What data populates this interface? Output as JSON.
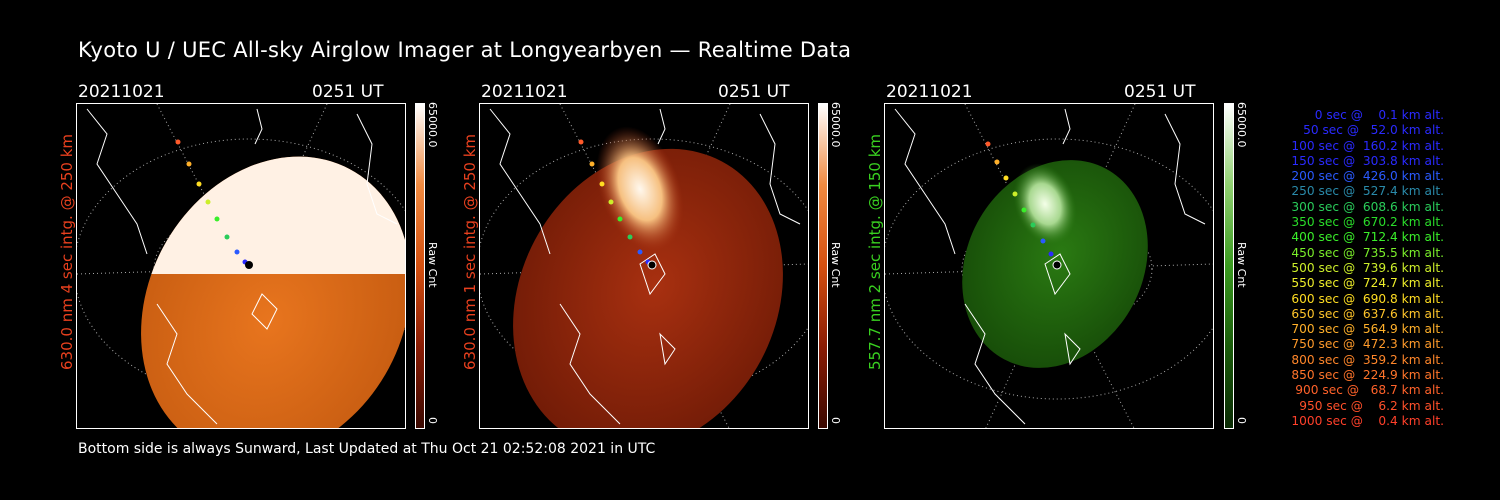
{
  "title": "Kyoto U / UEC All-sky Airglow Imager at Longyearbyen — Realtime Data",
  "footer": "Bottom side is always Sunward, Last Updated at Thu Oct 21 02:52:08 2021 in UTC",
  "colors": {
    "background": "#000000",
    "red_label": "#e8401e",
    "green_label": "#39d020"
  },
  "panels": [
    {
      "date": "20211021",
      "time": "0251 UT",
      "ylabel": "630.0 nm 4 sec intg. @ 250 km",
      "ylabel_color": "#e8401e",
      "colorbar_max": "65000.0",
      "colorbar_label": "Raw Cnt",
      "colorbar_min": "0",
      "colormap": "red"
    },
    {
      "date": "20211021",
      "time": "0251 UT",
      "ylabel": "630.0 nm 1 sec intg. @ 250 km",
      "ylabel_color": "#e8401e",
      "colorbar_max": "65000.0",
      "colorbar_label": "Raw Cnt",
      "colorbar_min": "0",
      "colormap": "red"
    },
    {
      "date": "20211021",
      "time": "0251 UT",
      "ylabel": "557.7 nm 2 sec intg. @ 150 km",
      "ylabel_color": "#39d020",
      "colorbar_max": "65000.0",
      "colorbar_label": "Raw Cnt",
      "colorbar_min": "0",
      "colormap": "green"
    }
  ],
  "trajectory_legend": [
    {
      "text": "0 sec @    0.1 km alt.",
      "color": "#2a2aff"
    },
    {
      "text": "50 sec @   52.0 km alt.",
      "color": "#2a2aff"
    },
    {
      "text": "100 sec @  160.2 km alt.",
      "color": "#2a2aff"
    },
    {
      "text": "150 sec @  303.8 km alt.",
      "color": "#2a2aff"
    },
    {
      "text": "200 sec @  426.0 km alt.",
      "color": "#2a5aff"
    },
    {
      "text": "250 sec @  527.4 km alt.",
      "color": "#2a8aaa"
    },
    {
      "text": "300 sec @  608.6 km alt.",
      "color": "#2acc5a"
    },
    {
      "text": "350 sec @  670.2 km alt.",
      "color": "#2add2a"
    },
    {
      "text": "400 sec @  712.4 km alt.",
      "color": "#3aee2a"
    },
    {
      "text": "450 sec @  735.5 km alt.",
      "color": "#7aee2a"
    },
    {
      "text": "500 sec @  739.6 km alt.",
      "color": "#ccee2a"
    },
    {
      "text": "550 sec @  724.7 km alt.",
      "color": "#eeee2a"
    },
    {
      "text": "600 sec @  690.8 km alt.",
      "color": "#ffdd22"
    },
    {
      "text": "650 sec @  637.6 km alt.",
      "color": "#ffc42a"
    },
    {
      "text": "700 sec @  564.9 km alt.",
      "color": "#ffb02a"
    },
    {
      "text": "750 sec @  472.3 km alt.",
      "color": "#ff9a2a"
    },
    {
      "text": "800 sec @  359.2 km alt.",
      "color": "#ff862a"
    },
    {
      "text": "850 sec @  224.9 km alt.",
      "color": "#ff742a"
    },
    {
      "text": "900 sec @   68.7 km alt.",
      "color": "#ff622a"
    },
    {
      "text": "950 sec @    6.2 km alt.",
      "color": "#ff502a"
    },
    {
      "text": "1000 sec @    0.4 km alt.",
      "color": "#ff402a"
    }
  ]
}
